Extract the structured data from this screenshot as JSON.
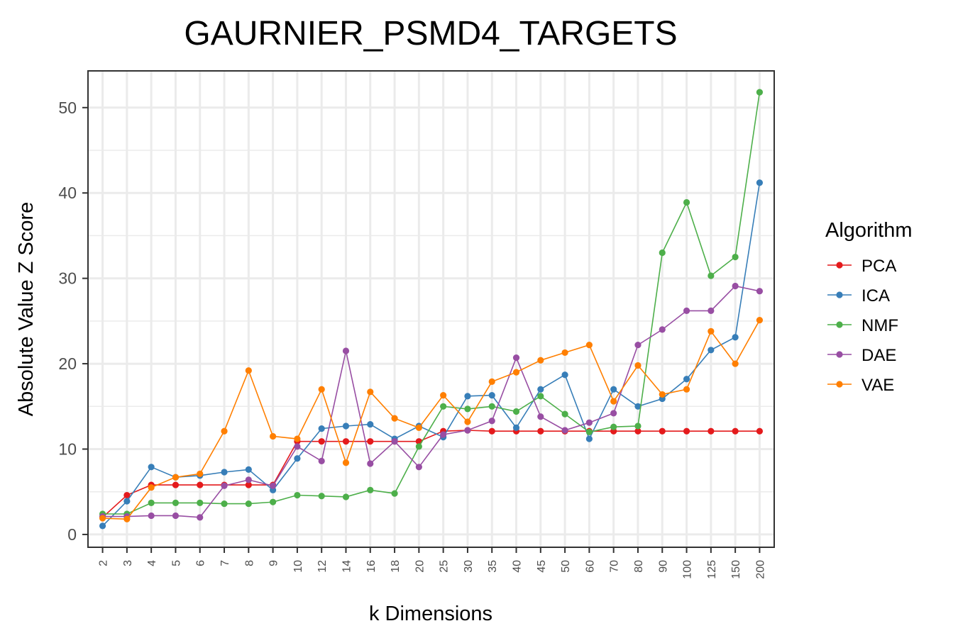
{
  "chart_data": {
    "type": "line",
    "title": "GAURNIER_PSMD4_TARGETS",
    "xlabel": "k Dimensions",
    "ylabel": "Absolute Value Z Score",
    "categories": [
      "2",
      "3",
      "4",
      "5",
      "6",
      "7",
      "8",
      "9",
      "10",
      "12",
      "14",
      "16",
      "18",
      "20",
      "25",
      "30",
      "35",
      "40",
      "45",
      "50",
      "60",
      "70",
      "80",
      "90",
      "100",
      "125",
      "150",
      "200"
    ],
    "yticks": [
      0,
      10,
      20,
      30,
      40,
      50
    ],
    "ylim": [
      -1.5,
      54.3
    ],
    "grid": true,
    "legend": {
      "title": "Algorithm",
      "position": "right"
    },
    "series": [
      {
        "name": "PCA",
        "color": "#e41a1c",
        "values": [
          2.0,
          4.6,
          5.8,
          5.8,
          5.8,
          5.8,
          5.8,
          5.8,
          10.9,
          10.9,
          10.9,
          10.9,
          10.9,
          10.9,
          12.1,
          12.2,
          12.1,
          12.1,
          12.1,
          12.1,
          12.1,
          12.1,
          12.1,
          12.1,
          12.1,
          12.1,
          12.1,
          12.1
        ]
      },
      {
        "name": "ICA",
        "color": "#377eb8",
        "values": [
          1.0,
          3.9,
          7.9,
          6.7,
          6.9,
          7.3,
          7.6,
          5.2,
          8.9,
          12.4,
          12.7,
          12.9,
          11.2,
          12.7,
          11.4,
          16.2,
          16.3,
          12.5,
          17.0,
          18.7,
          11.2,
          17.0,
          15.0,
          15.9,
          18.2,
          21.6,
          23.1,
          41.2
        ]
      },
      {
        "name": "NMF",
        "color": "#4daf4a",
        "values": [
          2.4,
          2.4,
          3.7,
          3.7,
          3.7,
          3.6,
          3.6,
          3.8,
          4.6,
          4.5,
          4.4,
          5.2,
          4.8,
          10.3,
          15.0,
          14.7,
          15.0,
          14.4,
          16.2,
          14.1,
          12.0,
          12.6,
          12.7,
          33.0,
          38.9,
          30.3,
          32.5,
          51.8
        ]
      },
      {
        "name": "DAE",
        "color": "#984ea3",
        "values": [
          2.1,
          2.1,
          2.2,
          2.2,
          2.0,
          5.7,
          6.4,
          5.7,
          10.3,
          8.6,
          21.5,
          8.3,
          10.9,
          7.9,
          11.7,
          12.2,
          13.3,
          20.7,
          13.8,
          12.2,
          13.1,
          14.2,
          22.2,
          24.0,
          26.2,
          26.2,
          29.1,
          28.5
        ]
      },
      {
        "name": "VAE",
        "color": "#ff7f00",
        "values": [
          1.9,
          1.8,
          5.5,
          6.7,
          7.1,
          12.1,
          19.2,
          11.5,
          11.2,
          17.0,
          8.4,
          16.7,
          13.6,
          12.5,
          16.3,
          13.2,
          17.9,
          19.0,
          20.4,
          21.3,
          22.2,
          15.6,
          19.8,
          16.4,
          17.0,
          23.8,
          20.0,
          25.1
        ]
      }
    ]
  }
}
